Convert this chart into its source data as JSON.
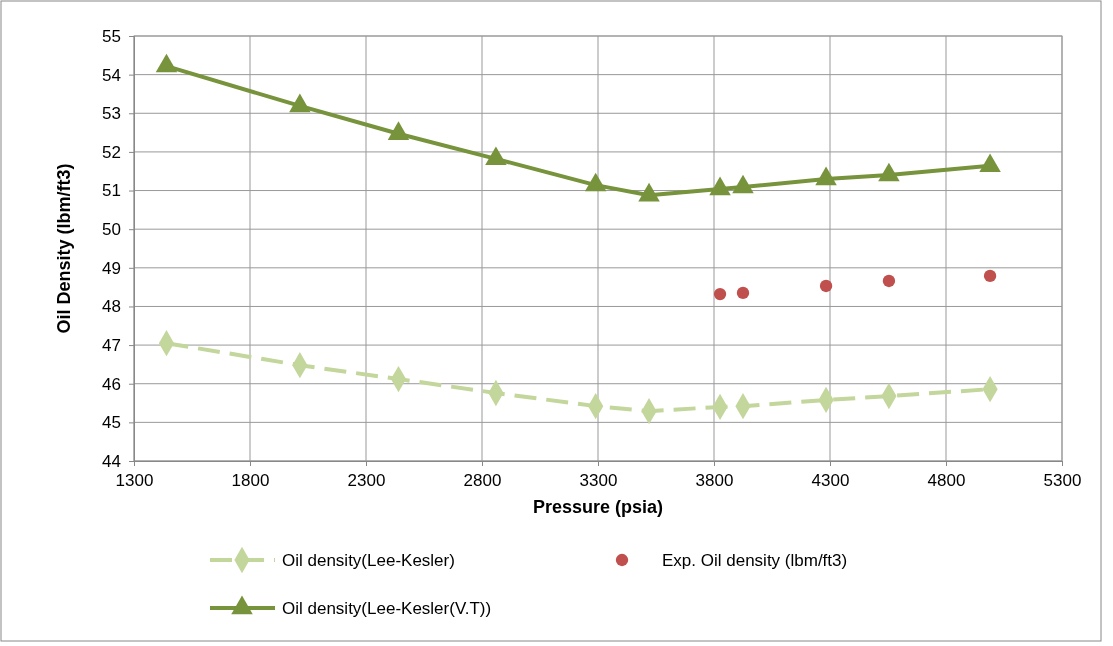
{
  "chart_data": {
    "type": "line",
    "xlabel": "Pressure (psia)",
    "ylabel": "Oil Density (lbm/ft3)",
    "xlim": [
      1300,
      5300
    ],
    "xticks": [
      1300,
      1800,
      2300,
      2800,
      3300,
      3800,
      4300,
      4800,
      5300
    ],
    "ylim": [
      44,
      55
    ],
    "yticks": [
      44,
      45,
      46,
      47,
      48,
      49,
      50,
      51,
      52,
      53,
      54,
      55
    ],
    "grid": true,
    "legend": "bottom",
    "x": [
      1440,
      2015,
      2440,
      2860,
      3290,
      3520,
      3826,
      3925,
      4283,
      4554,
      4990
    ],
    "series": [
      {
        "name": "Oil density(Lee-Kesler)",
        "color": "#c3d69b",
        "marker": "diamond",
        "line_style": "dashed",
        "values": [
          47.05,
          46.48,
          46.12,
          45.76,
          45.42,
          45.29,
          45.4,
          45.42,
          45.58,
          45.68,
          45.86
        ]
      },
      {
        "name": "Exp. Oil density (lbm/ft3)",
        "color": "#c0504d",
        "type": "scatter",
        "marker": "circle",
        "x": [
          3826,
          3925,
          4283,
          4554,
          4990
        ],
        "values": [
          48.32,
          48.35,
          48.53,
          48.66,
          48.79
        ]
      },
      {
        "name": "Oil density(Lee-Kesler(V.T))",
        "color": "#77933c",
        "marker": "triangle",
        "line_style": "solid",
        "values": [
          54.22,
          53.19,
          52.47,
          51.82,
          51.14,
          50.88,
          51.04,
          51.09,
          51.3,
          51.4,
          51.64
        ]
      }
    ]
  }
}
